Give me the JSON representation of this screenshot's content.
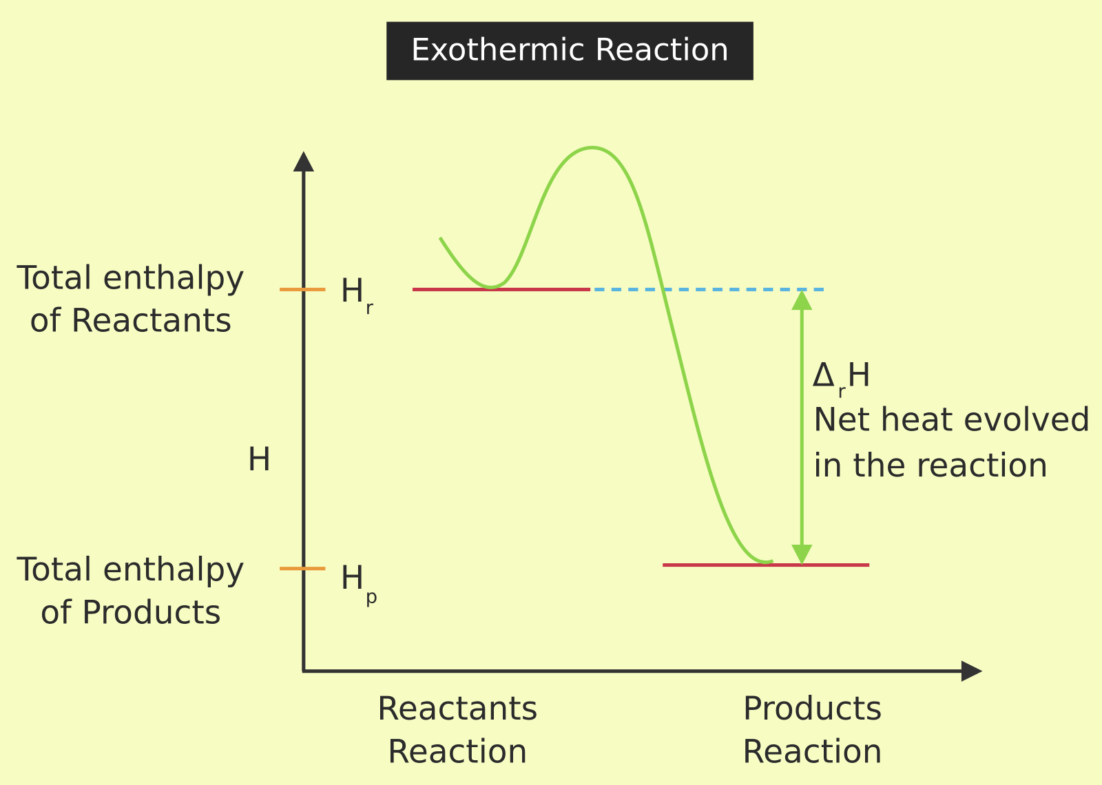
{
  "title": "Exothermic Reaction",
  "y_axis": {
    "label": "H"
  },
  "levels": [
    {
      "description": [
        "Total enthalpy",
        "of Reactants"
      ],
      "symbol": "H",
      "subscript": "r"
    },
    {
      "description": [
        "Total enthalpy",
        "of Products"
      ],
      "symbol": "H",
      "subscript": "p"
    }
  ],
  "delta": {
    "symbol": "Δ",
    "subscript": "r",
    "after": "H",
    "description": [
      "Net heat evolved",
      "in the reaction"
    ]
  },
  "x_labels": [
    [
      "Reactants",
      "Reaction"
    ],
    [
      "Products",
      "Reaction"
    ]
  ]
}
